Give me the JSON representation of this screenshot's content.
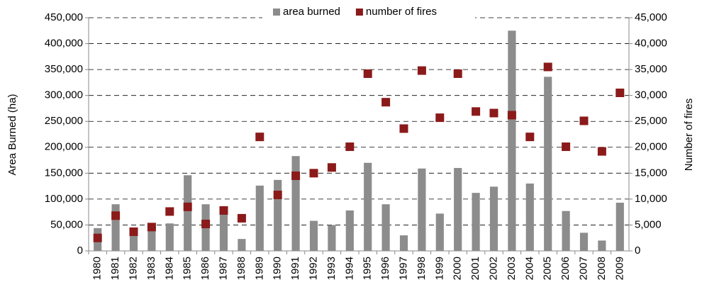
{
  "chart_data": {
    "type": "bar_scatter",
    "y_label": "Area Burned (ha)",
    "y2_label": "Number of fires",
    "categories": [
      "1980",
      "1981",
      "1982",
      "1983",
      "1984",
      "1985",
      "1986",
      "1987",
      "1988",
      "1989",
      "1990",
      "1991",
      "1992",
      "1993",
      "1994",
      "1995",
      "1996",
      "1997",
      "1998",
      "1999",
      "2000",
      "2001",
      "2002",
      "2003",
      "2004",
      "2005",
      "2006",
      "2007",
      "2008",
      "2009"
    ],
    "series": [
      {
        "name": "area burned",
        "kind": "bar",
        "color": "#8c8c8c",
        "values": [
          44000,
          90000,
          45000,
          43000,
          53000,
          146000,
          90000,
          74000,
          23000,
          126000,
          137000,
          183000,
          58000,
          50000,
          78000,
          170000,
          90000,
          30000,
          159000,
          72000,
          160000,
          112000,
          124000,
          425000,
          130000,
          336000,
          77000,
          35000,
          20000,
          93000
        ]
      },
      {
        "name": "number of fires",
        "kind": "scatter",
        "axis": "y2",
        "color": "#8b1a1a",
        "values": [
          2500,
          6800,
          3700,
          4600,
          7600,
          8500,
          5200,
          7800,
          6300,
          22000,
          10800,
          14500,
          15000,
          16100,
          20100,
          34200,
          28700,
          23600,
          34800,
          25700,
          34200,
          26900,
          26600,
          26200,
          22000,
          35500,
          20100,
          25100,
          19200,
          30500
        ]
      }
    ],
    "ylim": [
      0,
      450000
    ],
    "yticks": [
      0,
      {
        "value": 50000,
        "label": "50,000"
      },
      {
        "value": 100000,
        "label": "100,000"
      },
      {
        "value": 150000,
        "label": "150,000"
      },
      {
        "value": 200000,
        "label": "200,000"
      },
      {
        "value": 250000,
        "label": "250,000"
      },
      {
        "value": 300000,
        "label": "300,000"
      },
      {
        "value": 350000,
        "label": "350,000"
      },
      {
        "value": 400000,
        "label": "400,000"
      },
      {
        "value": 450000,
        "label": "450,000"
      }
    ],
    "y2lim": [
      0,
      45000
    ],
    "y2ticks": [
      0,
      {
        "value": 5000,
        "label": "5,000"
      },
      {
        "value": 10000,
        "label": "10,000"
      },
      {
        "value": 15000,
        "label": "15,000"
      },
      {
        "value": 20000,
        "label": "20,000"
      },
      {
        "value": 25000,
        "label": "25,000"
      },
      {
        "value": 30000,
        "label": "30,000"
      },
      {
        "value": 35000,
        "label": "35,000"
      },
      {
        "value": 40000,
        "label": "40,000"
      },
      {
        "value": 45000,
        "label": "45,000"
      }
    ],
    "grid": true,
    "legend": "top"
  }
}
